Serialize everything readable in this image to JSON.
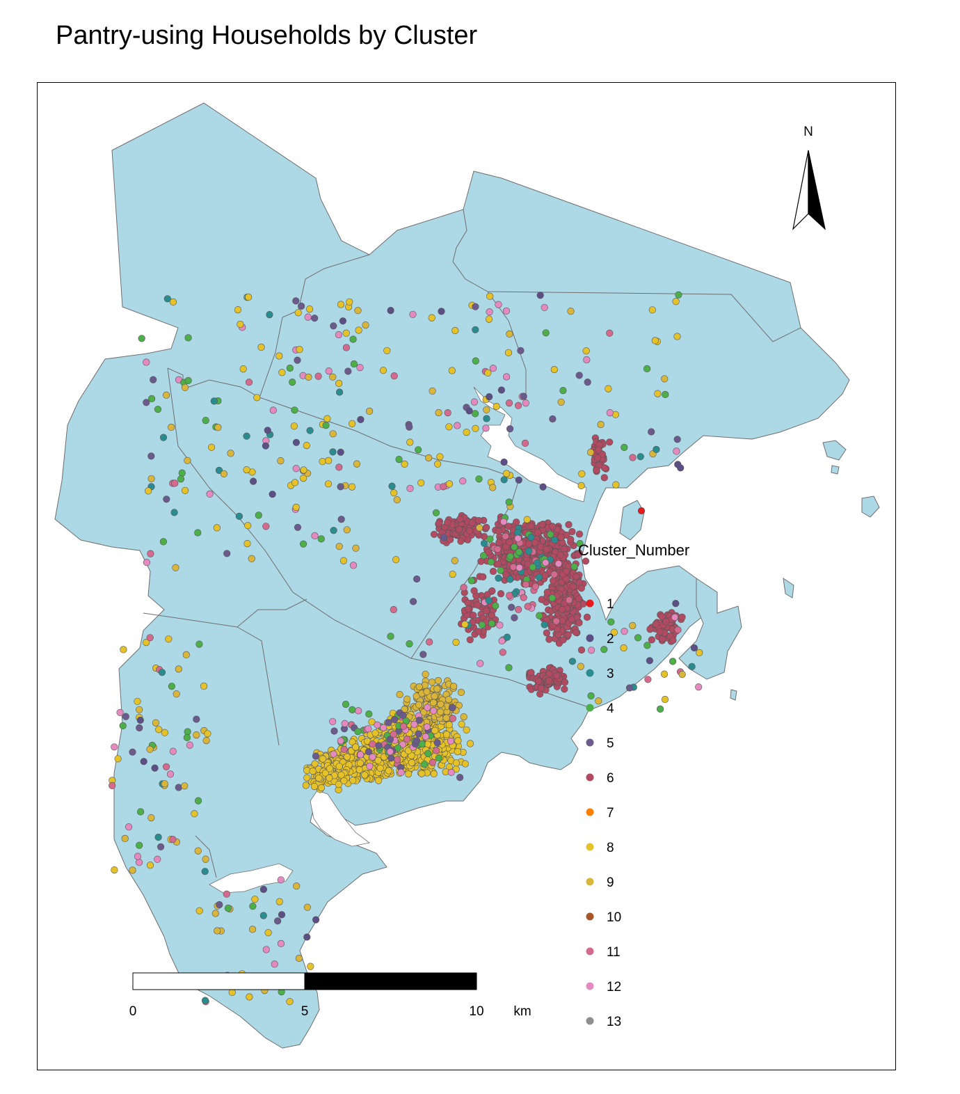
{
  "title": "Pantry-using Households by Cluster",
  "colors": {
    "land": "#add8e6",
    "boundary": "#6e6e6e",
    "water": "#ffffff"
  },
  "legend": {
    "title": "Cluster_Number",
    "items": [
      {
        "label": "1",
        "color": "#e41a1c"
      },
      {
        "label": "2",
        "color": "#5b4f85"
      },
      {
        "label": "3",
        "color": "#2b8c8f"
      },
      {
        "label": "4",
        "color": "#4daf4a"
      },
      {
        "label": "5",
        "color": "#6b5b8c"
      },
      {
        "label": "6",
        "color": "#b24a62"
      },
      {
        "label": "7",
        "color": "#ff7f00"
      },
      {
        "label": "8",
        "color": "#e6c229"
      },
      {
        "label": "9",
        "color": "#d9b63a"
      },
      {
        "label": "10",
        "color": "#a65628"
      },
      {
        "label": "11",
        "color": "#d46a8d"
      },
      {
        "label": "12",
        "color": "#e58ac0"
      },
      {
        "label": "13",
        "color": "#8f8f8f"
      }
    ]
  },
  "scale_bar": {
    "labels": [
      "0",
      "5",
      "10"
    ],
    "unit": "km"
  },
  "north_arrow": {
    "label": "N",
    "icon": "north-arrow-icon"
  }
}
